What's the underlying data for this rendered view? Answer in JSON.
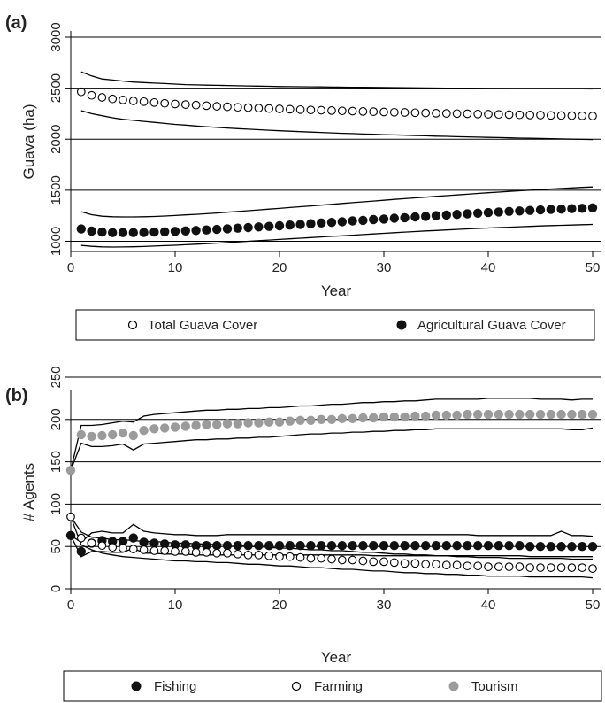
{
  "chart_data": [
    {
      "type": "scatter",
      "panel_label": "(a)",
      "xlabel": "Year",
      "ylabel": "Guava (ha)",
      "xlim": [
        0,
        50
      ],
      "ylim": [
        900,
        3000
      ],
      "xticks": [
        0,
        10,
        20,
        30,
        40,
        50
      ],
      "yticks": [
        1000,
        1500,
        2000,
        2500,
        3000
      ],
      "grid": "horizontal",
      "legend": "bottom",
      "series": [
        {
          "name": "Total Guava Cover",
          "marker": "hollow-circle",
          "x": [
            1,
            2,
            3,
            4,
            5,
            6,
            7,
            8,
            9,
            10,
            11,
            12,
            13,
            14,
            15,
            16,
            17,
            18,
            19,
            20,
            21,
            22,
            23,
            24,
            25,
            26,
            27,
            28,
            29,
            30,
            31,
            32,
            33,
            34,
            35,
            36,
            37,
            38,
            39,
            40,
            41,
            42,
            43,
            44,
            45,
            46,
            47,
            48,
            49,
            50
          ],
          "values": [
            2465,
            2430,
            2410,
            2395,
            2385,
            2375,
            2368,
            2360,
            2352,
            2345,
            2340,
            2334,
            2328,
            2322,
            2318,
            2313,
            2309,
            2305,
            2301,
            2297,
            2294,
            2290,
            2287,
            2284,
            2281,
            2278,
            2275,
            2272,
            2270,
            2267,
            2264,
            2262,
            2260,
            2257,
            2255,
            2253,
            2251,
            2249,
            2247,
            2245,
            2243,
            2241,
            2239,
            2237,
            2236,
            2234,
            2232,
            2231,
            2229,
            2228
          ],
          "upper": [
            2660,
            2620,
            2590,
            2580,
            2570,
            2560,
            2555,
            2550,
            2545,
            2540,
            2535,
            2532,
            2530,
            2528,
            2526,
            2524,
            2522,
            2520,
            2518,
            2516,
            2515,
            2514,
            2513,
            2512,
            2511,
            2510,
            2509,
            2508,
            2507,
            2506,
            2505,
            2504,
            2503,
            2502,
            2501,
            2500,
            2500,
            2499,
            2498,
            2497,
            2497,
            2496,
            2496,
            2495,
            2495,
            2494,
            2494,
            2493,
            2493,
            2492
          ],
          "lower": [
            2280,
            2250,
            2230,
            2210,
            2195,
            2185,
            2175,
            2165,
            2155,
            2145,
            2138,
            2130,
            2123,
            2116,
            2110,
            2104,
            2098,
            2093,
            2088,
            2083,
            2078,
            2074,
            2070,
            2066,
            2062,
            2058,
            2055,
            2051,
            2048,
            2045,
            2042,
            2039,
            2036,
            2033,
            2030,
            2028,
            2025,
            2023,
            2020,
            2018,
            2016,
            2013,
            2011,
            2009,
            2007,
            2005,
            2003,
            2001,
            1999,
            1997
          ]
        },
        {
          "name": "Agricultural Guava Cover",
          "marker": "filled-circle",
          "x": [
            1,
            2,
            3,
            4,
            5,
            6,
            7,
            8,
            9,
            10,
            11,
            12,
            13,
            14,
            15,
            16,
            17,
            18,
            19,
            20,
            21,
            22,
            23,
            24,
            25,
            26,
            27,
            28,
            29,
            30,
            31,
            32,
            33,
            34,
            35,
            36,
            37,
            38,
            39,
            40,
            41,
            42,
            43,
            44,
            45,
            46,
            47,
            48,
            49,
            50
          ],
          "values": [
            1120,
            1100,
            1090,
            1085,
            1085,
            1085,
            1087,
            1090,
            1093,
            1097,
            1101,
            1106,
            1111,
            1116,
            1122,
            1128,
            1134,
            1140,
            1146,
            1152,
            1159,
            1165,
            1172,
            1179,
            1185,
            1192,
            1199,
            1205,
            1212,
            1218,
            1225,
            1231,
            1238,
            1244,
            1251,
            1257,
            1263,
            1269,
            1275,
            1281,
            1287,
            1292,
            1297,
            1302,
            1307,
            1311,
            1315,
            1319,
            1323,
            1327
          ],
          "upper": [
            1290,
            1260,
            1245,
            1240,
            1238,
            1238,
            1240,
            1243,
            1247,
            1252,
            1258,
            1264,
            1270,
            1277,
            1284,
            1291,
            1299,
            1307,
            1315,
            1322,
            1330,
            1338,
            1346,
            1354,
            1362,
            1370,
            1378,
            1386,
            1394,
            1402,
            1410,
            1417,
            1425,
            1432,
            1440,
            1447,
            1454,
            1461,
            1468,
            1475,
            1481,
            1488,
            1494,
            1500,
            1506,
            1512,
            1517,
            1522,
            1527,
            1532
          ],
          "lower": [
            960,
            950,
            945,
            943,
            944,
            946,
            949,
            953,
            957,
            961,
            966,
            971,
            976,
            982,
            988,
            994,
            1000,
            1006,
            1012,
            1018,
            1024,
            1030,
            1036,
            1042,
            1048,
            1054,
            1060,
            1066,
            1072,
            1078,
            1084,
            1090,
            1095,
            1101,
            1106,
            1111,
            1116,
            1121,
            1126,
            1130,
            1134,
            1138,
            1142,
            1146,
            1150,
            1153,
            1156,
            1159,
            1162,
            1165
          ]
        }
      ]
    },
    {
      "type": "scatter",
      "panel_label": "(b)",
      "xlabel": "Year",
      "ylabel": "# Agents",
      "xlim": [
        0,
        50
      ],
      "ylim": [
        0,
        250
      ],
      "xticks": [
        0,
        10,
        20,
        30,
        40,
        50
      ],
      "yticks": [
        0,
        50,
        100,
        150,
        200,
        250
      ],
      "grid": "horizontal",
      "legend": "bottom",
      "series": [
        {
          "name": "Fishing",
          "marker": "filled-circle",
          "color": "#111111",
          "x": [
            0,
            1,
            2,
            3,
            4,
            5,
            6,
            7,
            8,
            9,
            10,
            11,
            12,
            13,
            14,
            15,
            16,
            17,
            18,
            19,
            20,
            21,
            22,
            23,
            24,
            25,
            26,
            27,
            28,
            29,
            30,
            31,
            32,
            33,
            34,
            35,
            36,
            37,
            38,
            39,
            40,
            41,
            42,
            43,
            44,
            45,
            46,
            47,
            48,
            49,
            50
          ],
          "values": [
            63,
            44,
            54,
            57,
            56,
            56,
            60,
            55,
            54,
            53,
            52,
            52,
            51,
            51,
            51,
            51,
            51,
            51,
            51,
            51,
            51,
            51,
            51,
            51,
            51,
            51,
            51,
            51,
            51,
            51,
            51,
            51,
            51,
            51,
            51,
            51,
            51,
            51,
            51,
            51,
            51,
            51,
            51,
            51,
            50,
            50,
            50,
            50,
            50,
            50,
            50
          ],
          "upper": [
            63,
            55,
            66,
            68,
            66,
            66,
            76,
            68,
            66,
            65,
            64,
            64,
            63,
            63,
            63,
            64,
            64,
            64,
            64,
            64,
            64,
            64,
            64,
            64,
            64,
            64,
            64,
            64,
            64,
            64,
            64,
            64,
            64,
            64,
            64,
            64,
            64,
            64,
            64,
            63,
            63,
            63,
            63,
            63,
            63,
            63,
            63,
            68,
            63,
            63,
            62
          ],
          "lower": [
            63,
            38,
            44,
            44,
            43,
            43,
            48,
            42,
            42,
            41,
            41,
            41,
            40,
            40,
            40,
            40,
            40,
            40,
            40,
            40,
            40,
            40,
            40,
            40,
            40,
            40,
            40,
            40,
            40,
            39,
            39,
            39,
            39,
            39,
            39,
            39,
            39,
            39,
            39,
            39,
            39,
            39,
            39,
            39,
            38,
            38,
            38,
            38,
            38,
            38,
            38
          ]
        },
        {
          "name": "Farming",
          "marker": "hollow-circle",
          "color": "#111111",
          "x": [
            0,
            1,
            2,
            3,
            4,
            5,
            6,
            7,
            8,
            9,
            10,
            11,
            12,
            13,
            14,
            15,
            16,
            17,
            18,
            19,
            20,
            21,
            22,
            23,
            24,
            25,
            26,
            27,
            28,
            29,
            30,
            31,
            32,
            33,
            34,
            35,
            36,
            37,
            38,
            39,
            40,
            41,
            42,
            43,
            44,
            45,
            46,
            47,
            48,
            49,
            50
          ],
          "values": [
            85,
            60,
            54,
            51,
            49,
            48,
            47,
            46,
            45,
            45,
            44,
            44,
            43,
            43,
            42,
            42,
            41,
            40,
            40,
            39,
            38,
            38,
            37,
            36,
            36,
            35,
            34,
            34,
            33,
            32,
            32,
            31,
            30,
            30,
            29,
            29,
            28,
            28,
            27,
            27,
            26,
            26,
            26,
            26,
            25,
            25,
            25,
            25,
            25,
            25,
            24
          ],
          "upper": [
            85,
            67,
            61,
            60,
            58,
            58,
            57,
            56,
            56,
            55,
            54,
            54,
            53,
            53,
            52,
            52,
            51,
            50,
            50,
            49,
            48,
            48,
            47,
            46,
            46,
            45,
            45,
            44,
            43,
            43,
            42,
            41,
            41,
            40,
            40,
            39,
            39,
            38,
            38,
            37,
            37,
            37,
            36,
            36,
            36,
            36,
            36,
            36,
            35,
            35,
            35
          ],
          "lower": [
            85,
            52,
            46,
            42,
            40,
            38,
            37,
            36,
            35,
            34,
            33,
            33,
            32,
            32,
            31,
            31,
            30,
            29,
            29,
            28,
            27,
            27,
            26,
            25,
            25,
            24,
            23,
            23,
            22,
            21,
            21,
            20,
            19,
            19,
            18,
            18,
            17,
            17,
            16,
            16,
            15,
            15,
            15,
            15,
            14,
            14,
            14,
            14,
            14,
            14,
            13
          ]
        },
        {
          "name": "Tourism",
          "marker": "filled-circle",
          "color": "#9b9b9b",
          "x": [
            0,
            1,
            2,
            3,
            4,
            5,
            6,
            7,
            8,
            9,
            10,
            11,
            12,
            13,
            14,
            15,
            16,
            17,
            18,
            19,
            20,
            21,
            22,
            23,
            24,
            25,
            26,
            27,
            28,
            29,
            30,
            31,
            32,
            33,
            34,
            35,
            36,
            37,
            38,
            39,
            40,
            41,
            42,
            43,
            44,
            45,
            46,
            47,
            48,
            49,
            50
          ],
          "values": [
            140,
            182,
            180,
            181,
            182,
            184,
            181,
            187,
            189,
            190,
            191,
            192,
            193,
            194,
            194,
            195,
            195,
            196,
            196,
            197,
            197,
            198,
            199,
            199,
            200,
            200,
            201,
            201,
            202,
            202,
            203,
            203,
            203,
            204,
            204,
            205,
            205,
            205,
            206,
            206,
            206,
            206,
            206,
            206,
            206,
            206,
            206,
            206,
            206,
            206,
            206
          ],
          "upper": [
            140,
            193,
            193,
            194,
            196,
            198,
            197,
            204,
            206,
            207,
            208,
            209,
            210,
            211,
            211,
            212,
            212,
            213,
            213,
            214,
            214,
            215,
            216,
            216,
            217,
            218,
            218,
            219,
            220,
            220,
            221,
            221,
            222,
            222,
            223,
            224,
            224,
            224,
            224,
            224,
            225,
            225,
            225,
            225,
            225,
            224,
            224,
            224,
            223,
            224,
            224
          ],
          "lower": [
            140,
            172,
            168,
            168,
            169,
            171,
            164,
            171,
            172,
            173,
            174,
            175,
            176,
            176,
            177,
            177,
            178,
            178,
            179,
            179,
            180,
            181,
            182,
            183,
            183,
            184,
            184,
            185,
            185,
            186,
            186,
            187,
            187,
            188,
            188,
            189,
            189,
            189,
            189,
            189,
            189,
            189,
            189,
            189,
            189,
            189,
            189,
            189,
            188,
            188,
            190
          ]
        }
      ]
    }
  ]
}
